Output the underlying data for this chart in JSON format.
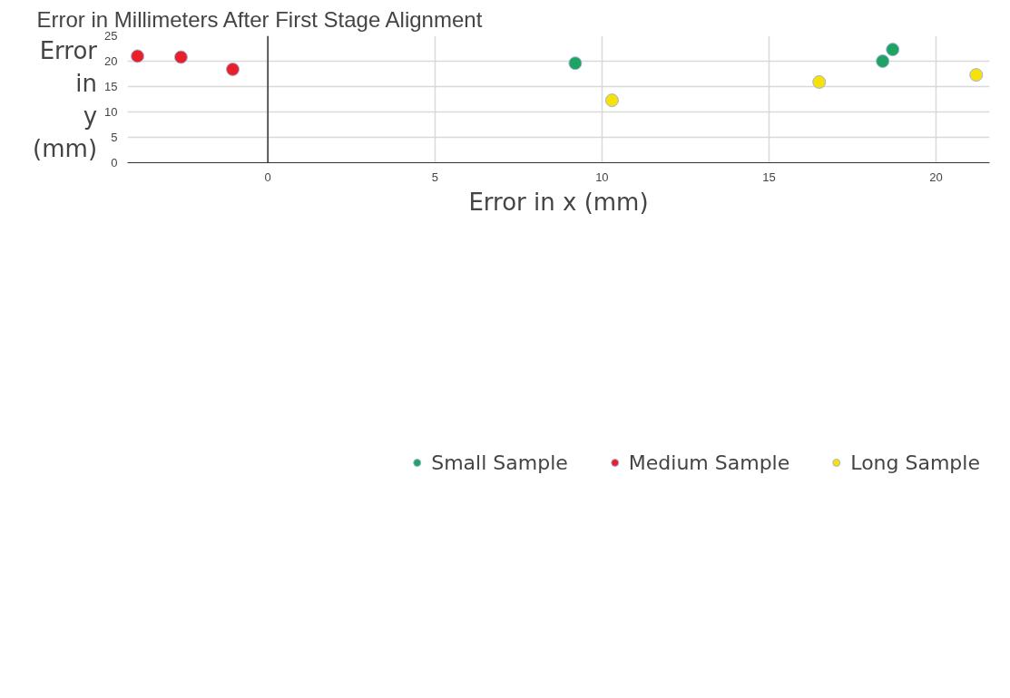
{
  "chart_data": {
    "type": "scatter",
    "title": "Error in Millimeters After First Stage Alignment",
    "xlabel": "Error in x (mm)",
    "ylabel": "Error in y (mm)",
    "series": [
      {
        "name": "Small Sample",
        "color": "#1ea362",
        "x": [
          9.2,
          18.4,
          18.7
        ],
        "values": [
          19.6,
          20.0,
          22.3
        ]
      },
      {
        "name": "Medium Sample",
        "color": "#e8202a",
        "x": [
          -3.9,
          -2.6,
          -1.05
        ],
        "values": [
          21.0,
          20.8,
          18.4
        ]
      },
      {
        "name": "Long Sample",
        "color": "#f7e10a",
        "x": [
          10.3,
          16.5,
          21.2
        ],
        "values": [
          12.3,
          15.9,
          17.3
        ]
      }
    ],
    "xlim": [
      -4.2,
      21.6
    ],
    "ylim": [
      0,
      25
    ],
    "xticks": [
      0,
      5,
      10,
      15,
      20
    ],
    "yticks": [
      0,
      5,
      10,
      15,
      20,
      25
    ],
    "ref_lines": [
      {
        "axis": "x",
        "value": 0,
        "color": "#333333"
      }
    ],
    "grid": true,
    "legend": "bottom",
    "marker": "circle"
  }
}
